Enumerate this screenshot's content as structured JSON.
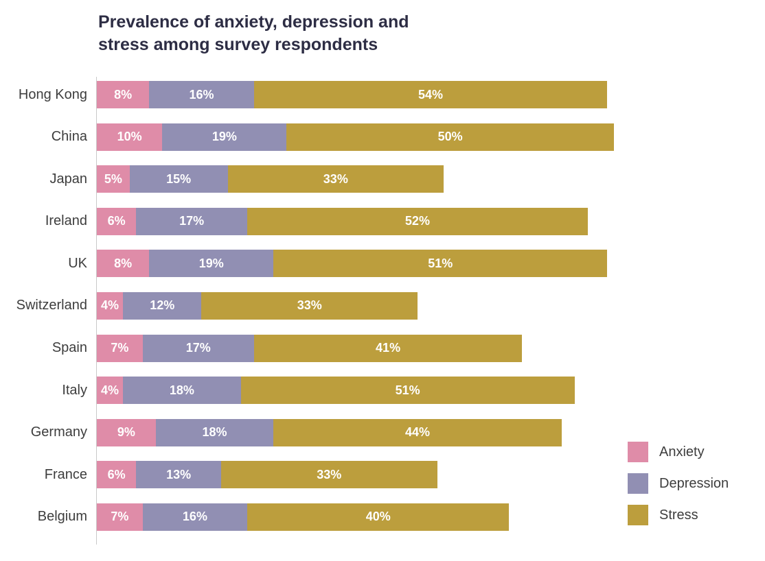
{
  "title_lines": [
    "Prevalence of anxiety, depression and",
    "stress among survey respondents"
  ],
  "chart_data": {
    "type": "bar",
    "orientation": "horizontal",
    "stacked": true,
    "title": "Prevalence of anxiety, depression and stress among survey respondents",
    "categories": [
      "Hong Kong",
      "China",
      "Japan",
      "Ireland",
      "UK",
      "Switzerland",
      "Spain",
      "Italy",
      "Germany",
      "France",
      "Belgium"
    ],
    "series": [
      {
        "name": "Anxiety",
        "color": "#df8ca8",
        "values": [
          8,
          10,
          5,
          6,
          8,
          4,
          7,
          4,
          9,
          6,
          7
        ]
      },
      {
        "name": "Depression",
        "color": "#918fb3",
        "values": [
          16,
          19,
          15,
          17,
          19,
          12,
          17,
          18,
          18,
          13,
          16
        ]
      },
      {
        "name": "Stress",
        "color": "#bc9e3d",
        "values": [
          54,
          50,
          33,
          52,
          51,
          33,
          41,
          51,
          44,
          33,
          40
        ]
      }
    ],
    "value_suffix": "%",
    "xlim": [
      0,
      80
    ],
    "grid": false,
    "data_labels": "inside-white",
    "legend_position": "bottom-right"
  },
  "legend": {
    "items": [
      {
        "label": "Anxiety",
        "color": "#df8ca8"
      },
      {
        "label": "Depression",
        "color": "#918fb3"
      },
      {
        "label": "Stress",
        "color": "#bc9e3d"
      }
    ]
  },
  "colors": {
    "title": "#2d2d44",
    "category_label": "#3d3d3d",
    "axis_line": "#c9c9c9",
    "bar_label": "#ffffff",
    "background": "#ffffff"
  }
}
